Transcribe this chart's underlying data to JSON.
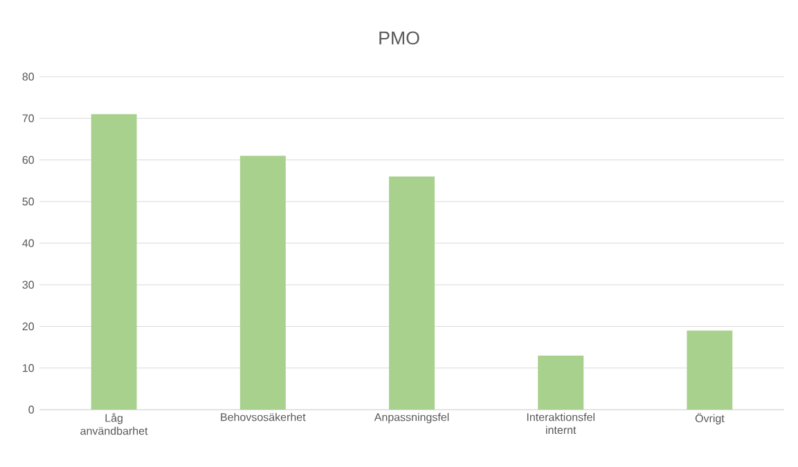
{
  "chart_data": {
    "type": "bar",
    "title": "PMO",
    "categories": [
      "Låg användbarhet",
      "Behovsosäkerhet",
      "Anpassningsfel",
      "Interaktionsfel internt",
      "Övrigt"
    ],
    "values": [
      71,
      61,
      56,
      13,
      19
    ],
    "color": "#a9d18e",
    "ylim": [
      0,
      80
    ],
    "yticks": [
      0,
      10,
      20,
      30,
      40,
      50,
      60,
      70,
      80
    ],
    "grid": "y"
  }
}
